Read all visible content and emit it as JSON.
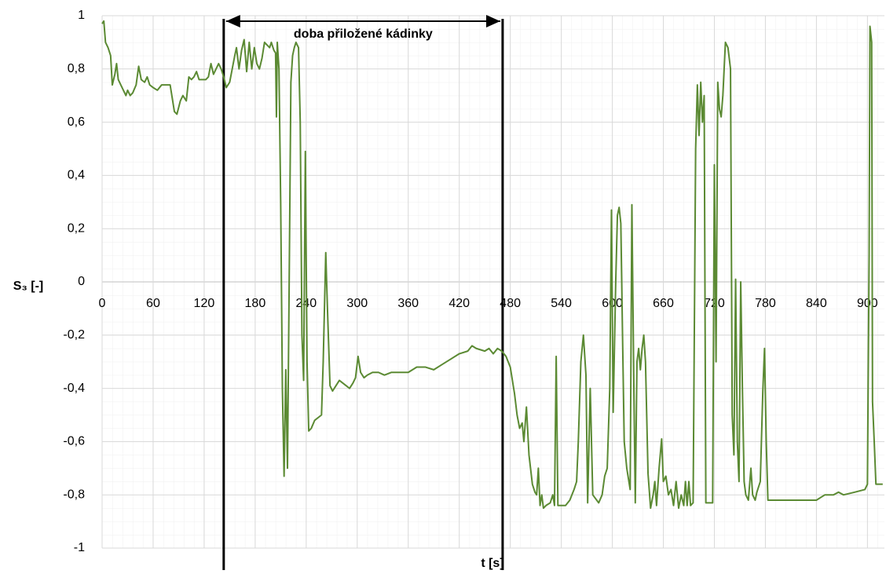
{
  "chart_data": {
    "type": "line",
    "xlabel": "t [s]",
    "ylabel": "S₃ [-]",
    "xlim": [
      0,
      920
    ],
    "ylim": [
      -1,
      1
    ],
    "xticks": [
      0,
      60,
      120,
      180,
      240,
      300,
      360,
      420,
      480,
      540,
      600,
      660,
      720,
      780,
      840,
      900
    ],
    "yticks": [
      -1,
      {
        "value": -0.8,
        "label": "-0,8"
      },
      {
        "value": -0.6,
        "label": "-0,6"
      },
      {
        "value": -0.4,
        "label": "-0,4"
      },
      {
        "value": -0.2,
        "label": "-0,2"
      },
      0,
      {
        "value": 0.2,
        "label": "0,2"
      },
      {
        "value": 0.4,
        "label": "0,4"
      },
      {
        "value": 0.6,
        "label": "0,6"
      },
      {
        "value": 0.8,
        "label": "0,8"
      },
      1
    ],
    "grid": true,
    "color": "#5b8a33",
    "annotation": {
      "text": "doba přiložené kádinky",
      "x_start": 143,
      "x_end": 471
    },
    "x": [
      0,
      2,
      4,
      7,
      10,
      12,
      15,
      17,
      19,
      22,
      25,
      28,
      30,
      33,
      36,
      40,
      43,
      46,
      50,
      53,
      56,
      60,
      65,
      70,
      80,
      83,
      85,
      88,
      92,
      95,
      99,
      102,
      105,
      108,
      111,
      114,
      122,
      125,
      128,
      131,
      134,
      137,
      140,
      143,
      146,
      150,
      153,
      156,
      158,
      161,
      164,
      167,
      170,
      173,
      176,
      179,
      182,
      185,
      188,
      191,
      194,
      197,
      199,
      202,
      204,
      205,
      206,
      208,
      210,
      212,
      214,
      216,
      218,
      220,
      222,
      224,
      226,
      228,
      231,
      233,
      235,
      237,
      239,
      241,
      243,
      246,
      250,
      254,
      258,
      260,
      263,
      265,
      268,
      271,
      275,
      279,
      283,
      287,
      291,
      295,
      298,
      301,
      304,
      308,
      312,
      318,
      325,
      332,
      340,
      360,
      370,
      380,
      390,
      400,
      410,
      420,
      430,
      435,
      440,
      450,
      455,
      460,
      465,
      470,
      475,
      480,
      485,
      488,
      491,
      494,
      496,
      499,
      502,
      506,
      509,
      511,
      513,
      515,
      517,
      519,
      522,
      527,
      530,
      532,
      534,
      536,
      545,
      550,
      555,
      558,
      560,
      563,
      566,
      569,
      571,
      574,
      577,
      584,
      588,
      591,
      594,
      597,
      599,
      601,
      604,
      606,
      608,
      610,
      612,
      614,
      617,
      621,
      623,
      625,
      627,
      629,
      631,
      633,
      635,
      637,
      639,
      642,
      645,
      648,
      650,
      652,
      655,
      658,
      660,
      663,
      666,
      669,
      672,
      675,
      678,
      681,
      684,
      686,
      688,
      690,
      692,
      695,
      698,
      700,
      702,
      704,
      706,
      708,
      710,
      718,
      720,
      722,
      724,
      726,
      728,
      730,
      733,
      736,
      739,
      741,
      743,
      745,
      747,
      749,
      751,
      753,
      755,
      757,
      760,
      763,
      765,
      768,
      770,
      774,
      777,
      779,
      781,
      783,
      840,
      845,
      850,
      860,
      866,
      872,
      885,
      897,
      900,
      902,
      903,
      905,
      906,
      908,
      910,
      918
    ],
    "values": [
      0.97,
      0.98,
      0.9,
      0.88,
      0.85,
      0.74,
      0.78,
      0.82,
      0.76,
      0.74,
      0.72,
      0.7,
      0.72,
      0.7,
      0.71,
      0.74,
      0.81,
      0.76,
      0.75,
      0.77,
      0.74,
      0.73,
      0.72,
      0.74,
      0.74,
      0.68,
      0.64,
      0.63,
      0.68,
      0.7,
      0.68,
      0.77,
      0.76,
      0.77,
      0.79,
      0.76,
      0.76,
      0.77,
      0.82,
      0.78,
      0.8,
      0.82,
      0.8,
      0.77,
      0.73,
      0.75,
      0.8,
      0.85,
      0.88,
      0.8,
      0.87,
      0.91,
      0.79,
      0.9,
      0.8,
      0.88,
      0.82,
      0.8,
      0.84,
      0.9,
      0.89,
      0.88,
      0.9,
      0.87,
      0.86,
      0.62,
      0.9,
      0.8,
      0.3,
      -0.4,
      -0.73,
      -0.33,
      -0.7,
      0,
      0.75,
      0.85,
      0.88,
      0.9,
      0.88,
      0.6,
      -0.2,
      -0.37,
      0.49,
      -0.3,
      -0.56,
      -0.55,
      -0.52,
      -0.51,
      -0.5,
      -0.3,
      0.11,
      -0.1,
      -0.39,
      -0.41,
      -0.39,
      -0.37,
      -0.38,
      -0.39,
      -0.4,
      -0.38,
      -0.36,
      -0.28,
      -0.34,
      -0.36,
      -0.35,
      -0.34,
      -0.34,
      -0.35,
      -0.34,
      -0.34,
      -0.32,
      -0.32,
      -0.33,
      -0.31,
      -0.29,
      -0.27,
      -0.26,
      -0.24,
      -0.25,
      -0.26,
      -0.25,
      -0.27,
      -0.25,
      -0.26,
      -0.28,
      -0.32,
      -0.42,
      -0.5,
      -0.55,
      -0.53,
      -0.6,
      -0.47,
      -0.65,
      -0.76,
      -0.79,
      -0.8,
      -0.7,
      -0.84,
      -0.8,
      -0.85,
      -0.84,
      -0.83,
      -0.8,
      -0.84,
      -0.28,
      -0.84,
      -0.84,
      -0.82,
      -0.78,
      -0.75,
      -0.6,
      -0.3,
      -0.2,
      -0.35,
      -0.83,
      -0.4,
      -0.8,
      -0.83,
      -0.8,
      -0.73,
      -0.7,
      -0.4,
      0.27,
      -0.49,
      0,
      0.25,
      0.28,
      0.22,
      -0.2,
      -0.6,
      -0.7,
      -0.78,
      0.29,
      -0.3,
      -0.83,
      -0.3,
      -0.25,
      -0.33,
      -0.25,
      -0.2,
      -0.3,
      -0.72,
      -0.85,
      -0.8,
      -0.75,
      -0.84,
      -0.7,
      -0.59,
      -0.75,
      -0.73,
      -0.8,
      -0.78,
      -0.84,
      -0.75,
      -0.85,
      -0.8,
      -0.84,
      -0.75,
      -0.84,
      -0.75,
      -0.84,
      -0.83,
      0.5,
      0.74,
      0.55,
      0.75,
      0.6,
      0.7,
      -0.83,
      -0.83,
      0.44,
      -0.3,
      0.75,
      0.65,
      0.62,
      0.7,
      0.9,
      0.88,
      0.8,
      -0.5,
      -0.65,
      0.01,
      -0.6,
      -0.75,
      0,
      -0.4,
      -0.75,
      -0.8,
      -0.82,
      -0.7,
      -0.8,
      -0.82,
      -0.79,
      -0.75,
      -0.41,
      -0.25,
      -0.6,
      -0.82,
      -0.82,
      -0.81,
      -0.8,
      -0.8,
      -0.79,
      -0.8,
      -0.79,
      -0.78,
      -0.76,
      0.1,
      0.96,
      0.9,
      -0.45,
      -0.6,
      -0.76,
      -0.76
    ]
  }
}
